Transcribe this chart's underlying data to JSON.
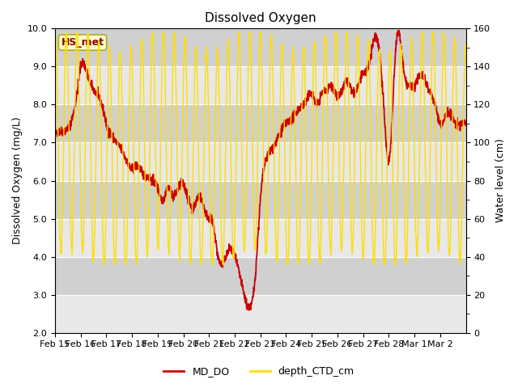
{
  "title": "Dissolved Oxygen",
  "ylabel_left": "Dissolved Oxygen (mg/L)",
  "ylabel_right": "Water level (cm)",
  "ylim_left": [
    2.0,
    10.0
  ],
  "ylim_right": [
    0,
    160
  ],
  "yticks_left": [
    2.0,
    3.0,
    4.0,
    5.0,
    6.0,
    7.0,
    8.0,
    9.0,
    10.0
  ],
  "yticks_right": [
    0,
    20,
    40,
    60,
    80,
    100,
    120,
    140,
    160
  ],
  "xtick_labels": [
    "Feb 15",
    "Feb 16",
    "Feb 17",
    "Feb 18",
    "Feb 19",
    "Feb 20",
    "Feb 21",
    "Feb 22",
    "Feb 23",
    "Feb 24",
    "Feb 25",
    "Feb 26",
    "Feb 27",
    "Feb 28",
    "Mar 1",
    "Mar 2"
  ],
  "legend_label_box": "HS_met",
  "legend_label_red": "MD_DO",
  "legend_label_yellow": "depth_CTD_cm",
  "line_color_red": "#cc0000",
  "line_color_yellow": "#ffdd00",
  "bg_color_light": "#e8e8e8",
  "bg_color_dark": "#d0d0d0",
  "fig_bg_color": "#ffffff",
  "box_facecolor": "#ffffcc",
  "box_edgecolor": "#aaa830",
  "title_fontsize": 11,
  "label_fontsize": 9,
  "tick_fontsize": 8,
  "legend_fontsize": 9
}
